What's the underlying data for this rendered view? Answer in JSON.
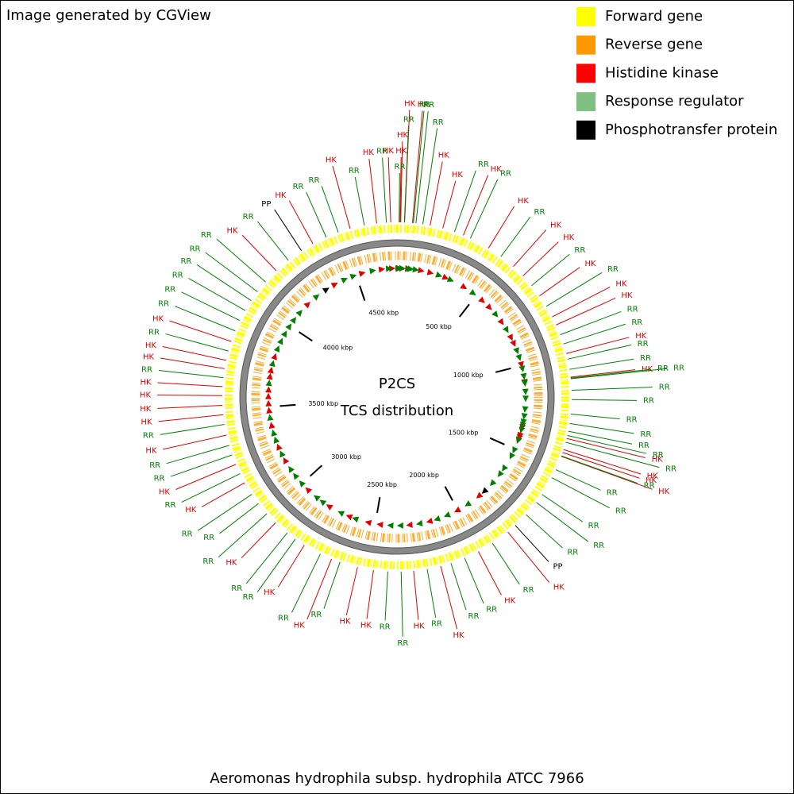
{
  "header": {
    "title": "Image generated by CGView"
  },
  "legend": [
    {
      "label": "Forward gene",
      "color": "#ffff00"
    },
    {
      "label": "Reverse gene",
      "color": "#ff9900"
    },
    {
      "label": "Histidine kinase",
      "color": "#ff0000",
      "mark_color": "#e00000",
      "features": [
        {
          "label": "HK",
          "position": 13
        },
        {
          "label": "HK",
          "position": 16
        },
        {
          "label": "HK",
          "position": 33
        },
        {
          "label": "HK",
          "position": 67
        },
        {
          "label": "HK",
          "position": 144
        },
        {
          "label": "HK",
          "position": 200
        },
        {
          "label": "HK",
          "position": 294
        },
        {
          "label": "HK",
          "position": 416
        },
        {
          "label": "HK",
          "position": 550
        },
        {
          "label": "HK",
          "position": 608
        },
        {
          "label": "HK",
          "position": 720
        },
        {
          "label": "HK",
          "position": 826
        },
        {
          "label": "HK",
          "position": 865
        },
        {
          "label": "HK",
          "position": 996
        },
        {
          "label": "HK",
          "position": 1100
        },
        {
          "label": "HK",
          "position": 1367
        },
        {
          "label": "HK",
          "position": 1417
        },
        {
          "label": "HK",
          "position": 1430
        },
        {
          "label": "HK",
          "position": 1448
        },
        {
          "label": "HK",
          "position": 1853
        },
        {
          "label": "HK",
          "position": 2006
        },
        {
          "label": "HK",
          "position": 2181
        },
        {
          "label": "HK",
          "position": 2300
        },
        {
          "label": "HK",
          "position": 2474
        },
        {
          "label": "HK",
          "position": 2544
        },
        {
          "label": "HK",
          "position": 2662
        },
        {
          "label": "HK",
          "position": 2794
        },
        {
          "label": "HK",
          "position": 2952
        },
        {
          "label": "HK",
          "position": 3171
        },
        {
          "label": "HK",
          "position": 3259
        },
        {
          "label": "HK",
          "position": 3392
        },
        {
          "label": "HK",
          "position": 3481
        },
        {
          "label": "HK",
          "position": 3522
        },
        {
          "label": "HK",
          "position": 3564
        },
        {
          "label": "HK",
          "position": 3603
        },
        {
          "label": "HK",
          "position": 3681
        },
        {
          "label": "HK",
          "position": 3718
        },
        {
          "label": "HK",
          "position": 3802
        },
        {
          "label": "HK",
          "position": 4168
        },
        {
          "label": "HK",
          "position": 4365
        },
        {
          "label": "HK",
          "position": 4539
        },
        {
          "label": "HK",
          "position": 4656
        },
        {
          "label": "HK",
          "position": 4717
        }
      ]
    },
    {
      "label": "Response regulator",
      "color": "#80c080",
      "mark_color": "#008000",
      "features": [
        {
          "label": "RR",
          "position": 9
        },
        {
          "label": "RR",
          "position": 32
        },
        {
          "label": "RR",
          "position": 71
        },
        {
          "label": "RR",
          "position": 82
        },
        {
          "label": "RR",
          "position": 112
        },
        {
          "label": "RR",
          "position": 253
        },
        {
          "label": "RR",
          "position": 327
        },
        {
          "label": "RR",
          "position": 481
        },
        {
          "label": "RR",
          "position": 664
        },
        {
          "label": "RR",
          "position": 774
        },
        {
          "label": "RR",
          "position": 911
        },
        {
          "label": "RR",
          "position": 953
        },
        {
          "label": "RR",
          "position": 1021
        },
        {
          "label": "RR",
          "position": 1066
        },
        {
          "label": "RR",
          "position": 1104
        },
        {
          "label": "RR",
          "position": 1107
        },
        {
          "label": "RR",
          "position": 1157
        },
        {
          "label": "RR",
          "position": 1197
        },
        {
          "label": "RR",
          "position": 1260
        },
        {
          "label": "RR",
          "position": 1301
        },
        {
          "label": "RR",
          "position": 1335
        },
        {
          "label": "RR",
          "position": 1354
        },
        {
          "label": "RR",
          "position": 1384
        },
        {
          "label": "RR",
          "position": 1446
        },
        {
          "label": "RR",
          "position": 1510
        },
        {
          "label": "RR",
          "position": 1549
        },
        {
          "label": "RR",
          "position": 1633
        },
        {
          "label": "RR",
          "position": 1675
        },
        {
          "label": "RR",
          "position": 1744
        },
        {
          "label": "RR",
          "position": 1935
        },
        {
          "label": "RR",
          "position": 2072
        },
        {
          "label": "RR",
          "position": 2135
        },
        {
          "label": "RR",
          "position": 2241
        },
        {
          "label": "RR",
          "position": 2354
        },
        {
          "label": "RR",
          "position": 2412
        },
        {
          "label": "RR",
          "position": 2623
        },
        {
          "label": "RR",
          "position": 2715
        },
        {
          "label": "RR",
          "position": 2841
        },
        {
          "label": "RR",
          "position": 2885
        },
        {
          "label": "RR",
          "position": 3006
        },
        {
          "label": "RR",
          "position": 3063
        },
        {
          "label": "RR",
          "position": 3112
        },
        {
          "label": "RR",
          "position": 3215
        },
        {
          "label": "RR",
          "position": 3303
        },
        {
          "label": "RR",
          "position": 3346
        },
        {
          "label": "RR",
          "position": 3439
        },
        {
          "label": "RR",
          "position": 3642
        },
        {
          "label": "RR",
          "position": 3759
        },
        {
          "label": "RR",
          "position": 3851
        },
        {
          "label": "RR",
          "position": 3900
        },
        {
          "label": "RR",
          "position": 3949
        },
        {
          "label": "RR",
          "position": 3999
        },
        {
          "label": "RR",
          "position": 4046
        },
        {
          "label": "RR",
          "position": 4101
        },
        {
          "label": "RR",
          "position": 4237
        },
        {
          "label": "RR",
          "position": 4429
        },
        {
          "label": "RR",
          "position": 4485
        },
        {
          "label": "RR",
          "position": 4602
        },
        {
          "label": "RR",
          "position": 4698
        }
      ]
    },
    {
      "label": "Phosphotransfer protein",
      "color": "#000000",
      "mark_color": "#000000",
      "features": [
        {
          "label": "PP",
          "position": 1810
        },
        {
          "label": "PP",
          "position": 4307
        }
      ]
    }
  ],
  "map": {
    "center_title": "P2CS",
    "center_subtitle": "TCS distribution",
    "lim": [
      0,
      4744
    ],
    "ticks": [
      {
        "value": 500,
        "label": "500 kbp"
      },
      {
        "value": 1000,
        "label": "1000 kbp"
      },
      {
        "value": 1500,
        "label": "1500 kbp"
      },
      {
        "value": 2000,
        "label": "2000 kbp"
      },
      {
        "value": 2500,
        "label": "2500 kbp"
      },
      {
        "value": 3000,
        "label": "3000 kbp"
      },
      {
        "value": 3500,
        "label": "3500 kbp"
      },
      {
        "value": 4000,
        "label": "4000 kbp"
      },
      {
        "value": 4500,
        "label": "4500 kbp"
      }
    ]
  },
  "footer": {
    "caption": "Aeromonas hydrophila subsp. hydrophila ATCC 7966"
  }
}
